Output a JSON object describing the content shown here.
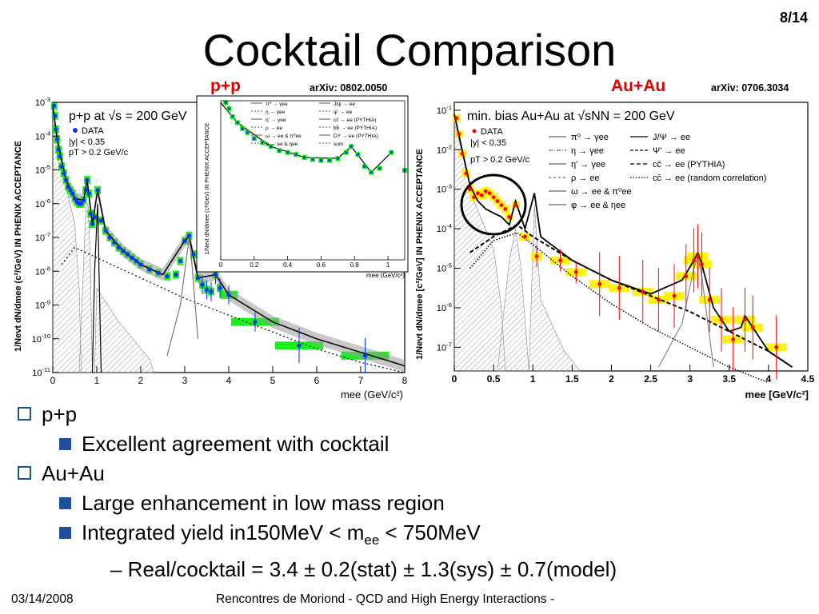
{
  "slide": {
    "title": "Cocktail Comparison",
    "page": "8/14",
    "footer_date": "03/14/2008",
    "footer_text": "Rencontres de Moriond - QCD and High Energy Interactions -"
  },
  "bullets": {
    "pp": "p+p",
    "pp_sub": "Excellent agreement with cocktail",
    "auau": "Au+Au",
    "auau_sub1": "Large enhancement in low mass region",
    "auau_sub2_pre": "Integrated yield in150MeV < m",
    "auau_sub2_sub": "ee",
    "auau_sub2_post": " < 750MeV",
    "auau_sub3": "– Real/cocktail = 3.4 ± 0.2(stat) ± 1.3(sys) ± 0.7(model)"
  },
  "colors": {
    "data_pp": "#0033ff",
    "data_auau": "#ff0000",
    "sys_pp": "#00ee00",
    "sys_auau": "#ffee00",
    "bullet": "#1f4e9c",
    "label": "#e00000"
  },
  "chart_data": [
    {
      "type": "line",
      "panel_label": "p+p",
      "reference": "arXiv: 0802.0050",
      "title_text": "p+p at √s = 200 GeV",
      "legend_data": "DATA",
      "cut1": "|y| < 0.35",
      "cut2": "pT > 0.2 GeV/c",
      "ylabel": "1/Nevt dN/dmee (c²/GeV) IN PHENIX ACCEPTANCE",
      "xlabel": "mee (GeV/c²)",
      "xlim": [
        0,
        8
      ],
      "ylim_log10": [
        -11,
        -3
      ],
      "log_y": true,
      "xticks": [
        "0",
        "1",
        "2",
        "3",
        "4",
        "5",
        "6",
        "7",
        "8"
      ],
      "yticks": [
        "10-11",
        "10-10",
        "10-9",
        "10-8",
        "10-7",
        "10-6",
        "10-5",
        "10-4",
        "10-3"
      ],
      "series": [
        {
          "name": "DATA",
          "x": [
            0.03,
            0.05,
            0.07,
            0.1,
            0.13,
            0.16,
            0.2,
            0.25,
            0.3,
            0.35,
            0.4,
            0.45,
            0.5,
            0.55,
            0.6,
            0.65,
            0.7,
            0.75,
            0.78,
            0.82,
            0.86,
            0.9,
            0.95,
            1.02,
            1.1,
            1.2,
            1.3,
            1.4,
            1.5,
            1.6,
            1.7,
            1.8,
            1.9,
            2.0,
            2.2,
            2.4,
            2.6,
            2.8,
            2.9,
            3.0,
            3.1,
            3.2,
            3.3,
            3.4,
            3.5,
            3.6,
            3.7,
            3.8,
            4.0,
            4.6,
            5.6,
            7.1
          ],
          "log10y": [
            -3.1,
            -3.4,
            -3.8,
            -4.1,
            -4.4,
            -4.6,
            -4.9,
            -5.1,
            -5.3,
            -5.5,
            -5.6,
            -5.7,
            -5.85,
            -5.95,
            -6.0,
            -6.0,
            -5.9,
            -5.6,
            -5.3,
            -5.7,
            -6.3,
            -6.6,
            -6.4,
            -5.6,
            -6.5,
            -6.8,
            -7.0,
            -7.15,
            -7.3,
            -7.4,
            -7.5,
            -7.6,
            -7.7,
            -7.8,
            -7.95,
            -8.05,
            -8.15,
            -8.1,
            -7.7,
            -7.1,
            -6.95,
            -7.5,
            -8.2,
            -8.4,
            -8.55,
            -8.6,
            -8.1,
            -8.5,
            -8.7,
            -9.5,
            -10.2,
            -10.5
          ]
        },
        {
          "name": "cocktail sum",
          "x": [
            0,
            0.1,
            0.3,
            0.5,
            0.7,
            0.78,
            0.9,
            1.02,
            1.2,
            1.6,
            2.0,
            2.5,
            3.0,
            3.1,
            3.3,
            3.7,
            4.0,
            5.0,
            6.0,
            7.0,
            8.0
          ],
          "log10y": [
            -3.1,
            -4.1,
            -5.3,
            -5.85,
            -5.9,
            -5.3,
            -6.6,
            -5.6,
            -6.8,
            -7.4,
            -7.8,
            -8.1,
            -7.1,
            -6.95,
            -8.2,
            -8.1,
            -8.7,
            -9.5,
            -10.0,
            -10.4,
            -10.8
          ]
        },
        {
          "name": "cc̄ → ee (PYTHIA)",
          "x": [
            0.2,
            0.5,
            1.0,
            1.5,
            2.0,
            2.5,
            3.0,
            4.0,
            5.0,
            6.0,
            7.0,
            8.0
          ],
          "log10y": [
            -7.8,
            -7.3,
            -7.6,
            -7.9,
            -8.2,
            -8.5,
            -8.8,
            -9.3,
            -9.8,
            -10.3,
            -10.7,
            -11.0
          ]
        },
        {
          "name": "J/ψ → ee",
          "x": [
            2.6,
            2.9,
            3.05,
            3.1,
            3.15,
            3.3
          ],
          "log10y": [
            -10.5,
            -9.0,
            -7.5,
            -7.0,
            -7.6,
            -10.0
          ]
        },
        {
          "name": "φ → ee & ηee",
          "x": [
            0.9,
            0.95,
            1.02,
            1.05,
            1.1
          ],
          "log10y": [
            -11.0,
            -8.0,
            -6.0,
            -8.0,
            -11.0
          ]
        }
      ],
      "inset": {
        "xlim": [
          0,
          1.1
        ],
        "xticks": [
          "0",
          "0.2",
          "0.4",
          "0.6",
          "0.8",
          "1"
        ],
        "xlabel": "mee (GeV/c²)",
        "ylabel": "1/Nevt dN/dmee (c²/GeV) IN PHENIX ACCEPTANCE",
        "legend": [
          "π⁰ → γee",
          "η → γee",
          "η' → γee",
          "ρ → ee",
          "ω → ee & π⁰ee",
          "φ → ee & ηee",
          "J/ψ → ee",
          "ψ' → ee",
          "cc̄ → ee (PYTHIA)",
          "bb̄ → ee (PYTHIA)",
          "DY → ee (PYTHIA)",
          "sum"
        ]
      }
    },
    {
      "type": "line",
      "panel_label": "Au+Au",
      "reference": "arXiv: 0706.3034",
      "title_text": "min. bias Au+Au at √sNN = 200 GeV",
      "legend_data": "DATA",
      "cut1": "|y| < 0.35",
      "cut2": "pT > 0.2 GeV/c",
      "ylabel": "1/Nevt dN/dmee [c²/GeV] IN PHENIX ACCEPTANCE",
      "xlabel": "mee [GeV/c²]",
      "xlim": [
        0,
        4.5
      ],
      "ylim_log10": [
        -7.6,
        -0.8
      ],
      "log_y": true,
      "xticks": [
        "0",
        "0.5",
        "1",
        "1.5",
        "2",
        "2.5",
        "3",
        "3.5",
        "4",
        "4.5"
      ],
      "yticks": [
        "10-7",
        "10-6",
        "10-5",
        "10-4",
        "10-3",
        "10-2",
        "10-1"
      ],
      "legend": [
        "π⁰ → γee",
        "η → γee",
        "η' → γee",
        "ρ → ee",
        "ω → ee & π⁰ee",
        "φ → ee & ηee",
        "J/Ψ → ee",
        "Ψ' → ee",
        "cc̄ → ee (PYTHIA)",
        "cc̄ → ee (random correlation)"
      ],
      "series": [
        {
          "name": "DATA",
          "x": [
            0.03,
            0.06,
            0.1,
            0.15,
            0.2,
            0.25,
            0.3,
            0.35,
            0.4,
            0.45,
            0.5,
            0.55,
            0.6,
            0.65,
            0.7,
            0.78,
            0.9,
            1.05,
            1.35,
            1.55,
            1.85,
            2.1,
            2.4,
            2.6,
            2.8,
            2.95,
            3.05,
            3.1,
            3.15,
            3.25,
            3.4,
            3.55,
            3.7,
            3.8,
            4.1
          ],
          "log10y": [
            -1.2,
            -1.6,
            -2.1,
            -2.6,
            -3.0,
            -3.2,
            -3.1,
            -3.15,
            -3.05,
            -3.1,
            -3.2,
            -3.3,
            -3.4,
            -3.5,
            -3.7,
            -3.4,
            -4.2,
            -4.7,
            -4.8,
            -5.1,
            -5.4,
            -5.5,
            -5.6,
            -5.8,
            -5.7,
            -5.2,
            -4.8,
            -4.7,
            -4.9,
            -5.8,
            -6.3,
            -6.8,
            -6.3,
            -6.5,
            -7.0
          ]
        },
        {
          "name": "cocktail sum",
          "x": [
            0,
            0.1,
            0.2,
            0.3,
            0.4,
            0.5,
            0.6,
            0.7,
            0.78,
            0.9,
            1.02,
            1.1,
            1.5,
            2.0,
            2.5,
            2.9,
            3.05,
            3.1,
            3.15,
            3.3,
            3.5,
            3.65,
            3.7,
            3.8,
            4.0,
            4.3
          ],
          "log10y": [
            -1.1,
            -2.0,
            -2.9,
            -3.3,
            -3.5,
            -3.6,
            -3.7,
            -3.9,
            -3.3,
            -4.0,
            -3.1,
            -4.2,
            -4.8,
            -5.3,
            -5.65,
            -5.3,
            -4.8,
            -4.6,
            -4.9,
            -6.0,
            -6.6,
            -6.5,
            -6.2,
            -6.5,
            -7.1,
            -7.5
          ]
        },
        {
          "name": "cc̄ → ee (PYTHIA)",
          "x": [
            0.2,
            0.5,
            0.8,
            1.0,
            1.5,
            2.0,
            2.5,
            3.0,
            3.5,
            4.0,
            4.3
          ],
          "log10y": [
            -4.6,
            -4.2,
            -3.9,
            -4.2,
            -4.8,
            -5.3,
            -5.7,
            -6.1,
            -6.6,
            -7.1,
            -7.5
          ]
        },
        {
          "name": "cc̄ → ee (random correlation)",
          "x": [
            0.2,
            0.5,
            0.8,
            1.0,
            1.5,
            2.0,
            2.5,
            3.0,
            3.5,
            4.0
          ],
          "log10y": [
            -5.0,
            -4.3,
            -4.1,
            -4.4,
            -5.2,
            -5.9,
            -6.5,
            -7.0,
            -7.5,
            -7.9
          ]
        },
        {
          "name": "J/Ψ → ee",
          "x": [
            2.6,
            2.9,
            3.05,
            3.1,
            3.15,
            3.3
          ],
          "log10y": [
            -7.5,
            -6.4,
            -5.0,
            -4.7,
            -5.2,
            -7.5
          ]
        }
      ]
    }
  ]
}
